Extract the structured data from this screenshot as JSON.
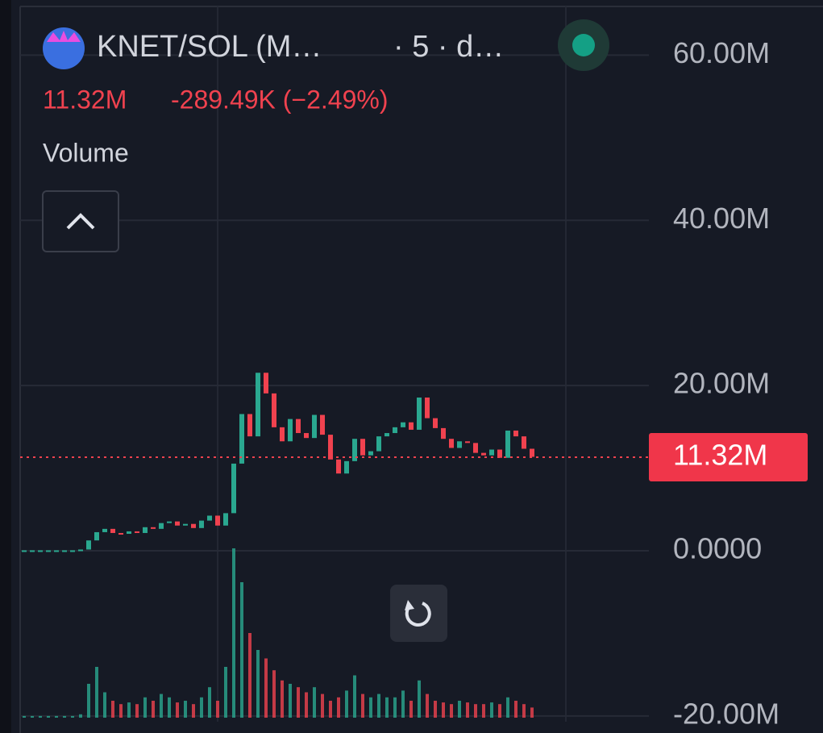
{
  "chart_data": {
    "type": "candlestick",
    "symbol": "KNET/SOL (M…",
    "interval": "· 5 · d…",
    "price": "11.32M",
    "change": "-289.49K (−2.49%)",
    "study": "Volume",
    "up_color": "#2aa890",
    "down_color": "#f0424f",
    "close": [
      0,
      0,
      0,
      0,
      0,
      0,
      0,
      0.1,
      1.2,
      2.2,
      2.6,
      2.1,
      2.0,
      2.3,
      2.1,
      2.8,
      2.6,
      3.3,
      3.5,
      3.0,
      3.2,
      2.7,
      3.6,
      4.2,
      3.0,
      4.5,
      10.5,
      16.5,
      13.8,
      21.5,
      19.0,
      14.9,
      13.2,
      15.9,
      14.2,
      13.6,
      16.4,
      14.0,
      11.0,
      9.3,
      10.8,
      13.5,
      11.5,
      12.0,
      13.8,
      14.2,
      14.9,
      15.5,
      14.6,
      18.5,
      16.0,
      14.8,
      13.5,
      12.4,
      13.2,
      13.0,
      11.8,
      11.5,
      12.2,
      11.2,
      14.5,
      13.8,
      12.3,
      11.32
    ],
    "volume": [
      1,
      1,
      1,
      1,
      1,
      1,
      1,
      2,
      20,
      30,
      15,
      10,
      8,
      9,
      8,
      12,
      10,
      14,
      12,
      9,
      10,
      8,
      12,
      18,
      10,
      30,
      100,
      80,
      50,
      40,
      35,
      28,
      22,
      20,
      18,
      15,
      18,
      14,
      10,
      12,
      16,
      25,
      14,
      12,
      14,
      12,
      12,
      16,
      10,
      22,
      14,
      10,
      9,
      8,
      10,
      9,
      8,
      8,
      9,
      8,
      12,
      10,
      8,
      6
    ],
    "ylim": [
      -20.7,
      65.9
    ],
    "yticks": [
      {
        "value": 60,
        "label": "60.00M"
      },
      {
        "value": 40,
        "label": "40.00M"
      },
      {
        "value": 20,
        "label": "20.00M"
      },
      {
        "value": 0,
        "label": "0.0000"
      },
      {
        "value": -20,
        "label": "-20.00M"
      }
    ],
    "last_price": {
      "value": 11.32,
      "label": "11.32M"
    },
    "grid": true
  }
}
